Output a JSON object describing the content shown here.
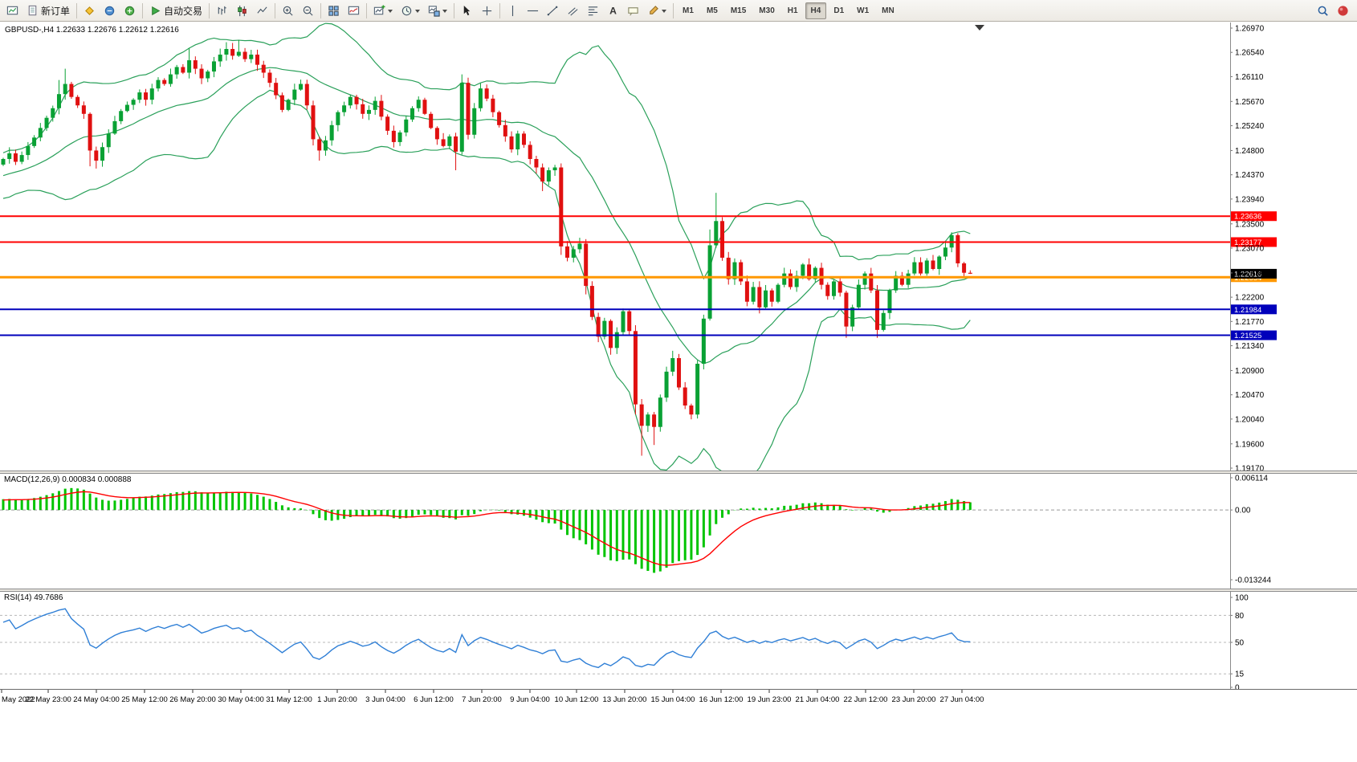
{
  "toolbar": {
    "buttons": [
      {
        "name": "charts-button",
        "icon": "chart-window"
      },
      {
        "name": "new-order-button",
        "icon": "new-order",
        "label": "新订单"
      },
      {
        "sep": true
      },
      {
        "name": "metaeditor-button",
        "icon": "metaeditor"
      },
      {
        "name": "terminal-button",
        "icon": "terminal"
      },
      {
        "name": "community-button",
        "icon": "mql"
      },
      {
        "sep": true
      },
      {
        "name": "autotrading-button",
        "icon": "autotrade",
        "label": "自动交易"
      },
      {
        "sep": true
      },
      {
        "name": "bar-chart-button",
        "icon": "chart-bars"
      },
      {
        "name": "candle-chart-button",
        "icon": "chart-candles"
      },
      {
        "name": "line-chart-button",
        "icon": "chart-line"
      },
      {
        "sep": true
      },
      {
        "name": "zoom-in-button",
        "icon": "zoom-in"
      },
      {
        "name": "zoom-out-button",
        "icon": "zoom-out"
      },
      {
        "sep": true
      },
      {
        "name": "tile-windows-button",
        "icon": "tile-windows"
      },
      {
        "name": "indicators-button",
        "icon": "indicators"
      },
      {
        "sep": true
      },
      {
        "name": "new-chart-button",
        "icon": "new-chart",
        "caret": true
      },
      {
        "name": "periods-button",
        "icon": "periods",
        "caret": true
      },
      {
        "name": "templates-button",
        "icon": "template",
        "caret": true
      },
      {
        "sep": true
      },
      {
        "name": "cursor-button",
        "icon": "cursor"
      },
      {
        "name": "crosshair-button",
        "icon": "crosshair"
      },
      {
        "sep": true
      },
      {
        "name": "vertical-line-button",
        "icon": "vline"
      },
      {
        "name": "horizontal-line-button",
        "icon": "hline"
      },
      {
        "name": "trendline-button",
        "icon": "trendline"
      },
      {
        "name": "channel-button",
        "icon": "channel"
      },
      {
        "name": "fibonacci-button",
        "icon": "fibo"
      },
      {
        "name": "text-button",
        "icon": "text"
      },
      {
        "name": "label-button",
        "icon": "label"
      },
      {
        "name": "shapes-button",
        "icon": "shapes",
        "caret": true
      },
      {
        "sep": true
      }
    ],
    "timeframes": {
      "options": [
        "M1",
        "M5",
        "M15",
        "M30",
        "H1",
        "H4",
        "D1",
        "W1",
        "MN"
      ],
      "selected": "H4"
    },
    "right_buttons": [
      {
        "name": "search-button",
        "icon": "search"
      },
      {
        "name": "community-sphere-button",
        "icon": "sphere"
      }
    ]
  },
  "header": {
    "symbol_period": "GBPUSD-,H4",
    "open": "1.22633",
    "high": "1.22676",
    "low": "1.22612",
    "close": "1.22616"
  },
  "macd": {
    "label": "MACD(12,26,9)",
    "main_value": "0.000834",
    "signal_value": "0.000888",
    "scale": [
      {
        "v": 0.006114,
        "t": "0.006114"
      },
      {
        "v": 0,
        "t": "0.00"
      },
      {
        "v": -0.013244,
        "t": "-0.013244"
      }
    ]
  },
  "rsi": {
    "label": "RSI(14)",
    "value": "49.7686",
    "scale": [
      {
        "v": 100,
        "t": "100"
      },
      {
        "v": 80,
        "t": "80"
      },
      {
        "v": 50,
        "t": "50"
      },
      {
        "v": 15,
        "t": "15"
      },
      {
        "v": 0,
        "t": "0"
      }
    ],
    "levels": [
      80,
      50,
      15
    ]
  },
  "price_scale": [
    "1.26970",
    "1.26540",
    "1.26110",
    "1.25670",
    "1.25240",
    "1.24800",
    "1.24370",
    "1.23940",
    "1.23500",
    "1.23070",
    "1.22630",
    "1.22200",
    "1.21770",
    "1.21340",
    "1.20900",
    "1.20470",
    "1.20040",
    "1.19600",
    "1.19170"
  ],
  "hlines": [
    {
      "price": 1.23636,
      "label": "1.23636",
      "color": "#ff0000",
      "width": 2
    },
    {
      "price": 1.23177,
      "label": "1.23177",
      "color": "#ff0000",
      "width": 2
    },
    {
      "price": 1.22554,
      "label": "1.22554",
      "color": "#ff9800",
      "width": 3
    },
    {
      "price": 1.21984,
      "label": "1.21984",
      "color": "#0000bb",
      "width": 2
    },
    {
      "price": 1.21525,
      "label": "1.21525",
      "color": "#0000bb",
      "width": 2
    }
  ],
  "bid": {
    "price": 1.22616,
    "label": "1.22616"
  },
  "time_axis": [
    [
      2,
      "May 2022"
    ],
    [
      60,
      "22 May 23:00"
    ],
    [
      120,
      "24 May 04:00"
    ],
    [
      180,
      "25 May 12:00"
    ],
    [
      240,
      "26 May 20:00"
    ],
    [
      300,
      "30 May 04:00"
    ],
    [
      360,
      "31 May 12:00"
    ],
    [
      420,
      "1 Jun 20:00"
    ],
    [
      480,
      "3 Jun 04:00"
    ],
    [
      540,
      "6 Jun 12:00"
    ],
    [
      600,
      "7 Jun 20:00"
    ],
    [
      660,
      "9 Jun 04:00"
    ],
    [
      718,
      "10 Jun 12:00"
    ],
    [
      778,
      "13 Jun 20:00"
    ],
    [
      838,
      "15 Jun 04:00"
    ],
    [
      898,
      "16 Jun 12:00"
    ],
    [
      958,
      "19 Jun 23:00"
    ],
    [
      1018,
      "21 Jun 04:00"
    ],
    [
      1078,
      "22 Jun 12:00"
    ],
    [
      1138,
      "23 Jun 20:00"
    ],
    [
      1198,
      "27 Jun 04:00"
    ]
  ],
  "colors": {
    "up": "#09a134",
    "down": "#e01010",
    "bollinger": "#2aa05a",
    "macd_bar": "#00c400",
    "macd_signal": "#ff0000",
    "rsi": "#2f7fd6",
    "bid_box": "#000000"
  },
  "chart_data": {
    "type": "candlestick",
    "symbol": "GBPUSD-",
    "period": "H4",
    "title": "GBPUSD-,H4",
    "ohlc_current": {
      "open": 1.22633,
      "high": 1.22676,
      "low": 1.22612,
      "close": 1.22616
    },
    "price_range": [
      1.1917,
      1.2697
    ],
    "closes": [
      1.2465,
      1.2475,
      1.246,
      1.2472,
      1.2488,
      1.2503,
      1.252,
      1.2538,
      1.2555,
      1.258,
      1.2598,
      1.2575,
      1.256,
      1.2545,
      1.248,
      1.2462,
      1.2486,
      1.251,
      1.2532,
      1.255,
      1.2561,
      1.257,
      1.2583,
      1.257,
      1.259,
      1.2605,
      1.2598,
      1.2615,
      1.2628,
      1.2618,
      1.264,
      1.2625,
      1.2608,
      1.262,
      1.2638,
      1.265,
      1.266,
      1.2648,
      1.2655,
      1.2642,
      1.265,
      1.2632,
      1.2618,
      1.26,
      1.2578,
      1.2552,
      1.257,
      1.2588,
      1.2598,
      1.256,
      1.25,
      1.248,
      1.2498,
      1.2525,
      1.2548,
      1.256,
      1.2575,
      1.2562,
      1.2545,
      1.2552,
      1.2568,
      1.254,
      1.2515,
      1.2495,
      1.2512,
      1.2535,
      1.2555,
      1.257,
      1.2545,
      1.252,
      1.25,
      1.2488,
      1.2505,
      1.2478,
      1.26,
      1.2508,
      1.2555,
      1.259,
      1.2572,
      1.2548,
      1.2525,
      1.2505,
      1.2482,
      1.251,
      1.249,
      1.2465,
      1.245,
      1.2425,
      1.2445,
      1.245,
      1.231,
      1.229,
      1.2305,
      1.2315,
      1.224,
      1.2185,
      1.215,
      1.2178,
      1.213,
      1.2158,
      1.2195,
      1.216,
      1.203,
      1.1992,
      1.2012,
      1.199,
      1.2042,
      1.2088,
      1.2112,
      1.206,
      1.2028,
      1.2012,
      1.2102,
      1.2182,
      1.2312,
      1.2355,
      1.229,
      1.2252,
      1.2282,
      1.2248,
      1.2212,
      1.2238,
      1.2202,
      1.2232,
      1.2212,
      1.2242,
      1.2262,
      1.2238,
      1.2258,
      1.2278,
      1.2252,
      1.2272,
      1.2242,
      1.2222,
      1.2248,
      1.2228,
      1.2168,
      1.2202,
      1.2242,
      1.2262,
      1.2232,
      1.2162,
      1.2192,
      1.2232,
      1.2258,
      1.2242,
      1.2262,
      1.2282,
      1.2262,
      1.2285,
      1.227,
      1.2292,
      1.2308,
      1.233,
      1.228,
      1.22633,
      1.22616
    ],
    "extremes": {
      "9": {
        "h": 1.2605
      },
      "10": {
        "h": 1.2625
      },
      "14": {
        "l": 1.2452
      },
      "15": {
        "l": 1.2448
      },
      "30": {
        "h": 1.2662
      },
      "36": {
        "h": 1.2672
      },
      "38": {
        "h": 1.2676
      },
      "51": {
        "l": 1.2462
      },
      "73": {
        "l": 1.2445
      },
      "74": {
        "h": 1.2615
      },
      "87": {
        "l": 1.2408
      },
      "90": {
        "l": 1.2295
      },
      "94": {
        "l": 1.2225
      },
      "98": {
        "l": 1.2118
      },
      "102": {
        "l": 1.2012
      },
      "103": {
        "l": 1.1939
      },
      "105": {
        "l": 1.1958
      },
      "108": {
        "h": 1.2125
      },
      "114": {
        "h": 1.234
      },
      "115": {
        "h": 1.2405
      },
      "136": {
        "l": 1.2148
      },
      "141": {
        "l": 1.2148
      },
      "153": {
        "h": 1.2335
      },
      "156": {
        "h": 1.22676,
        "l": 1.22612
      }
    },
    "indicators": [
      {
        "name": "Bollinger Bands",
        "period": 20,
        "deviation": 2
      },
      {
        "name": "MACD",
        "fast": 12,
        "slow": 26,
        "signal": 9,
        "current_main": 0.000834,
        "current_signal": 0.000888
      },
      {
        "name": "RSI",
        "period": 14,
        "current": 49.7686
      }
    ]
  }
}
